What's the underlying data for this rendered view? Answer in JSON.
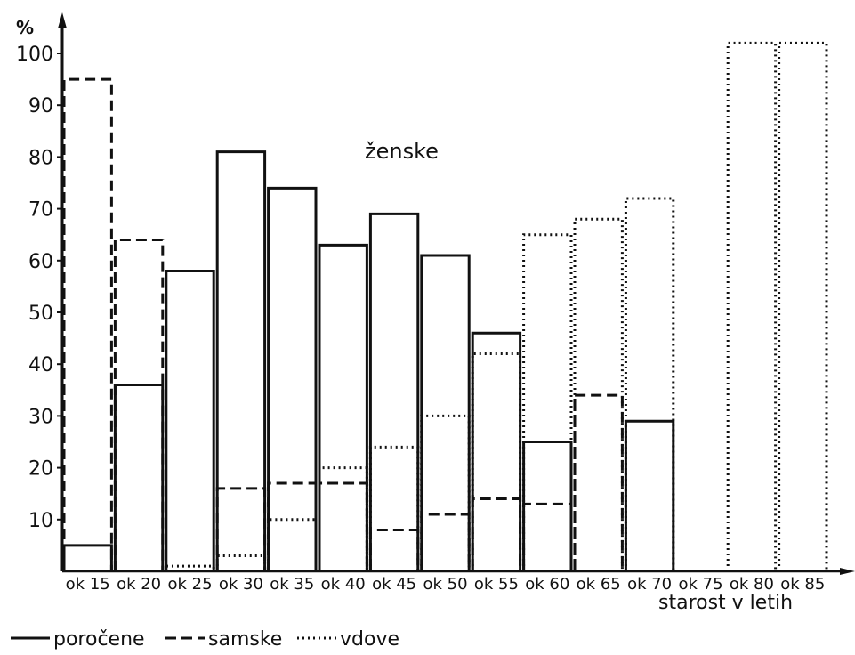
{
  "chart_data": {
    "type": "bar",
    "title": "ženske",
    "ylabel": "%",
    "xlabel": "starost v letih",
    "ylim": [
      0,
      100
    ],
    "yticks": [
      10,
      20,
      30,
      40,
      50,
      60,
      70,
      80,
      90,
      100
    ],
    "categories": [
      "ok 15",
      "ok 20",
      "ok 25",
      "ok 30",
      "ok 35",
      "ok 40",
      "ok 45",
      "ok 50",
      "ok 55",
      "ok 60",
      "ok 65",
      "ok 70",
      "ok 75",
      "ok 80",
      "ok 85"
    ],
    "series": [
      {
        "name": "poročene",
        "style": "solid",
        "values": [
          5,
          36,
          58,
          81,
          74,
          63,
          69,
          61,
          46,
          25,
          null,
          29,
          null,
          null,
          null
        ]
      },
      {
        "name": "samske",
        "style": "dashed",
        "values": [
          95,
          64,
          null,
          16,
          17,
          17,
          8,
          11,
          14,
          13,
          34,
          null,
          null,
          null,
          null
        ]
      },
      {
        "name": "vdove",
        "style": "dotted",
        "values": [
          null,
          null,
          1,
          3,
          10,
          20,
          24,
          30,
          42,
          65,
          68,
          72,
          null,
          102,
          102
        ]
      }
    ],
    "legend": {
      "position": "bottom-left"
    }
  }
}
